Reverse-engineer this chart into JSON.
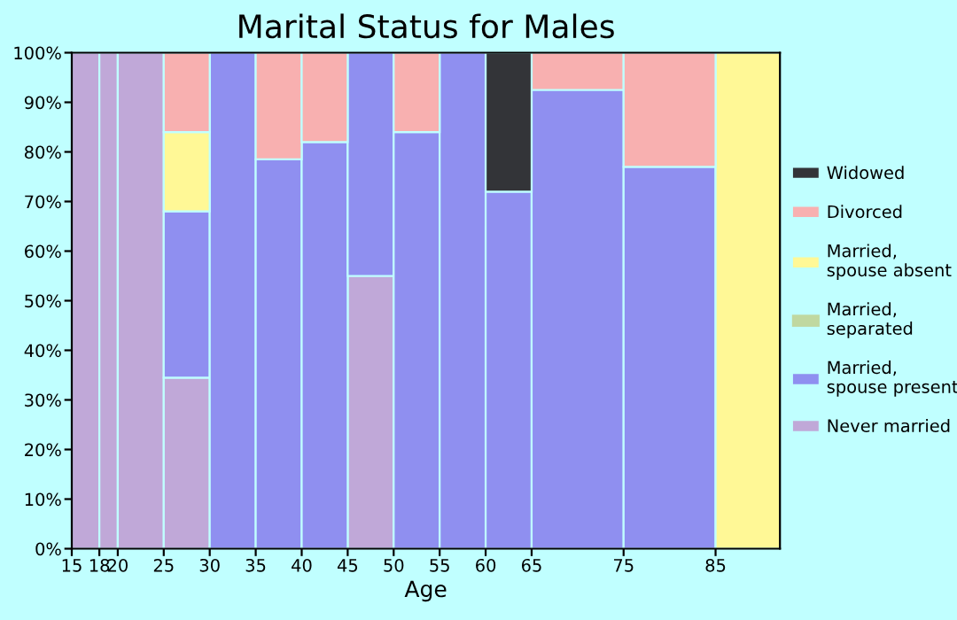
{
  "chart_data": {
    "type": "bar",
    "stacked": true,
    "title": "Marital Status for Males",
    "xlabel": "Age",
    "x": [
      16.5,
      19,
      22.5,
      27.5,
      32.5,
      37.5,
      42.5,
      47.5,
      52.5,
      57.5,
      62.5,
      70,
      80,
      88.5
    ],
    "xlim": [
      15,
      92
    ],
    "xticks": [
      15,
      18,
      20,
      25,
      30,
      35,
      40,
      45,
      50,
      55,
      60,
      65,
      75,
      85
    ],
    "ylim": [
      0,
      100
    ],
    "yticks": [
      {
        "value": 0,
        "label": "0%"
      },
      {
        "value": 10,
        "label": "10%"
      },
      {
        "value": 20,
        "label": "20%"
      },
      {
        "value": 30,
        "label": "30%"
      },
      {
        "value": 40,
        "label": "40%"
      },
      {
        "value": 50,
        "label": "50%"
      },
      {
        "value": 60,
        "label": "60%"
      },
      {
        "value": 70,
        "label": "70%"
      },
      {
        "value": 80,
        "label": "80%"
      },
      {
        "value": 90,
        "label": "90%"
      },
      {
        "value": 100,
        "label": "100%"
      }
    ],
    "grid": false,
    "legend": "right",
    "series": [
      {
        "name": "Never married",
        "color": "#c0a8d8",
        "values": [
          100,
          100,
          100,
          34.5,
          0,
          0,
          0,
          55,
          0,
          0,
          0,
          0,
          0,
          0
        ]
      },
      {
        "name": "Married,\nspouse present",
        "color": "#8f8ff0",
        "values": [
          0,
          0,
          0,
          33.5,
          100,
          78.5,
          82,
          45,
          84,
          100,
          72,
          92.5,
          77,
          0
        ]
      },
      {
        "name": "Married,\nseparated",
        "color": "#c0d8a0",
        "values": [
          0,
          0,
          0,
          0,
          0,
          0,
          0,
          0,
          0,
          0,
          0,
          0,
          0,
          0
        ]
      },
      {
        "name": "Married,\nspouse absent",
        "color": "#fff896",
        "values": [
          0,
          0,
          0,
          16,
          0,
          0,
          0,
          0,
          0,
          0,
          0,
          0,
          0,
          100
        ]
      },
      {
        "name": "Divorced",
        "color": "#f8b0b0",
        "values": [
          0,
          0,
          0,
          16,
          0,
          21.5,
          18,
          0,
          16,
          0,
          0,
          7.5,
          23,
          0
        ]
      },
      {
        "name": "Widowed",
        "color": "#333438",
        "values": [
          0,
          0,
          0,
          0,
          0,
          0,
          0,
          0,
          0,
          0,
          28,
          0,
          0,
          0
        ]
      }
    ]
  }
}
